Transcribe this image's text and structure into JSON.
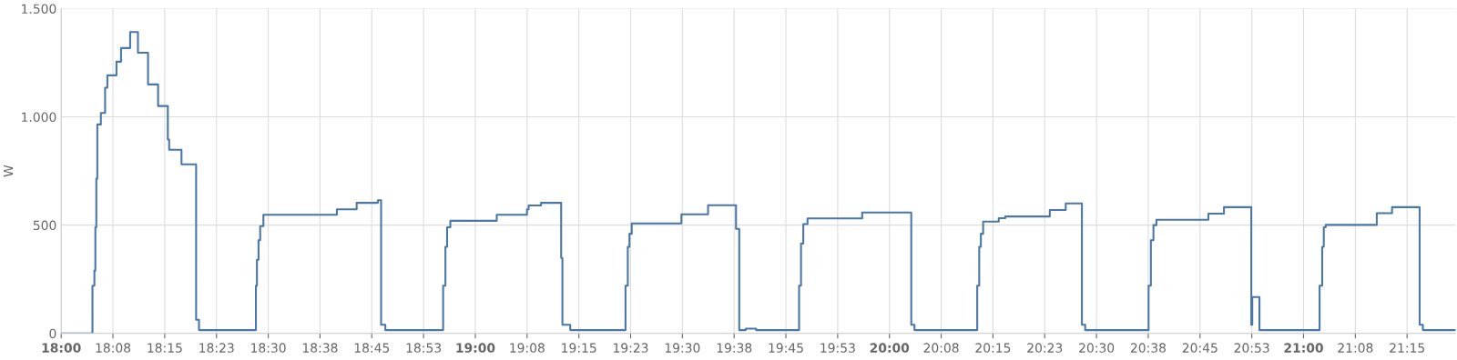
{
  "chart_data": {
    "type": "step",
    "ylabel": "W",
    "grid": true,
    "marker": "none",
    "line_style": "solid",
    "xlim": [
      18,
      21.367
    ],
    "ylim": [
      0,
      1500
    ],
    "yticks": [
      0,
      500,
      {
        "value": 1000,
        "label": "1.000"
      },
      {
        "value": 1500,
        "label": "1.500"
      }
    ],
    "xticks": [
      {
        "value": 18,
        "label": "18:00"
      },
      {
        "value": 18.125,
        "label": "18:08"
      },
      {
        "value": 18.25,
        "label": "18:15"
      },
      {
        "value": 18.375,
        "label": "18:23"
      },
      {
        "value": 18.5,
        "label": "18:30"
      },
      {
        "value": 18.625,
        "label": "18:38"
      },
      {
        "value": 18.75,
        "label": "18:45"
      },
      {
        "value": 18.875,
        "label": "18:53"
      },
      {
        "value": 19,
        "label": "19:00"
      },
      {
        "value": 19.125,
        "label": "19:08"
      },
      {
        "value": 19.25,
        "label": "19:15"
      },
      {
        "value": 19.375,
        "label": "19:23"
      },
      {
        "value": 19.5,
        "label": "19:30"
      },
      {
        "value": 19.625,
        "label": "19:38"
      },
      {
        "value": 19.75,
        "label": "19:45"
      },
      {
        "value": 19.875,
        "label": "19:53"
      },
      {
        "value": 20,
        "label": "20:00"
      },
      {
        "value": 20.125,
        "label": "20:08"
      },
      {
        "value": 20.25,
        "label": "20:15"
      },
      {
        "value": 20.375,
        "label": "20:23"
      },
      {
        "value": 20.5,
        "label": "20:30"
      },
      {
        "value": 20.625,
        "label": "20:38"
      },
      {
        "value": 20.75,
        "label": "20:45"
      },
      {
        "value": 20.875,
        "label": "20:53"
      },
      {
        "value": 21,
        "label": "21:00"
      },
      {
        "value": 21.125,
        "label": "21:08"
      },
      {
        "value": 21.25,
        "label": "21:15"
      }
    ],
    "series": [
      {
        "color": "#4a76a8",
        "x": [
          18,
          18.0755,
          18.0802,
          18.0825,
          18.0848,
          18.0872,
          18.0958,
          18.106,
          18.1115,
          18.1335,
          18.1445,
          18.1665,
          18.1853,
          18.2097,
          18.234,
          18.2575,
          18.2607,
          18.2905,
          18.3258,
          18.3328,
          18.4702,
          18.4727,
          18.4765,
          18.4805,
          18.4883,
          18.6657,
          18.7135,
          18.7647,
          18.7725,
          18.7827,
          18.9223,
          18.9278,
          18.9318,
          18.9397,
          19.0518,
          19.1248,
          19.1288,
          19.1587,
          19.2073,
          19.2103,
          19.2292,
          19.3627,
          19.3682,
          19.3722,
          19.3777,
          19.4977,
          19.562,
          19.6295,
          19.6373,
          19.6532,
          19.6782,
          19.7818,
          19.7865,
          19.792,
          19.8022,
          19.9342,
          20.0527,
          20.0605,
          20.212,
          20.2168,
          20.2208,
          20.2262,
          20.264,
          20.2797,
          20.3872,
          20.4257,
          20.4648,
          20.4727,
          20.6258,
          20.6313,
          20.6375,
          20.6447,
          20.7702,
          20.8078,
          20.8738,
          20.8762,
          20.8935,
          21.0387,
          21.045,
          21.0488,
          21.0535,
          21.1768,
          21.2137,
          21.2803,
          21.2882,
          21.367
        ],
        "values": [
          0,
          220,
          290,
          490,
          715,
          965,
          1018,
          1135,
          1192,
          1255,
          1318,
          1392,
          1296,
          1150,
          1050,
          895,
          848,
          781,
          63,
          15,
          220,
          340,
          430,
          495,
          548,
          573,
          603,
          615,
          40,
          15,
          220,
          400,
          490,
          520,
          548,
          573,
          591,
          603,
          348,
          40,
          15,
          220,
          400,
          460,
          508,
          550,
          592,
          483,
          15,
          22,
          15,
          220,
          415,
          505,
          531,
          558,
          40,
          15,
          220,
          400,
          460,
          516,
          532,
          540,
          570,
          600,
          40,
          15,
          220,
          430,
          500,
          525,
          553,
          583,
          40,
          168,
          15,
          220,
          400,
          490,
          501,
          555,
          583,
          40,
          15,
          15
        ]
      }
    ]
  }
}
